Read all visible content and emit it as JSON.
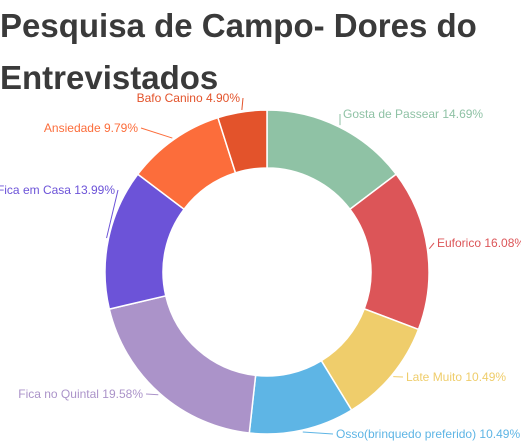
{
  "chart_data": {
    "type": "pie",
    "title_lines": [
      "Pesquisa de Campo- Dores do",
      "Entrevistados"
    ],
    "donut": true,
    "legend": "none",
    "slices": [
      {
        "label": "Gosta de Passear",
        "value": 14.69,
        "text": "Gosta de Passear 14.69%",
        "color": "#8fc2a5"
      },
      {
        "label": "Euforico",
        "value": 16.08,
        "text": "Euforico 16.08%",
        "color": "#dc5558"
      },
      {
        "label": "Late Muito",
        "value": 10.49,
        "text": "Late Muito 10.49%",
        "color": "#efcd6b"
      },
      {
        "label": "Osso(brinquedo preferido)",
        "value": 10.49,
        "text": "Osso(brinquedo preferido) 10.49%",
        "color": "#5eb5e5"
      },
      {
        "label": "Fica no Quintal",
        "value": 19.58,
        "text": "Fica no Quintal 19.58%",
        "color": "#ab93c9"
      },
      {
        "label": "Fica em Casa",
        "value": 13.99,
        "text": "Fica em Casa 13.99%",
        "color": "#6c53d8"
      },
      {
        "label": "Ansiedade",
        "value": 9.79,
        "text": "Ansiedade 9.79%",
        "color": "#fc6d3b"
      },
      {
        "label": "Bafo Canino",
        "value": 4.9,
        "text": "Bafo Canino 4.90%",
        "color": "#e3532b"
      }
    ]
  }
}
